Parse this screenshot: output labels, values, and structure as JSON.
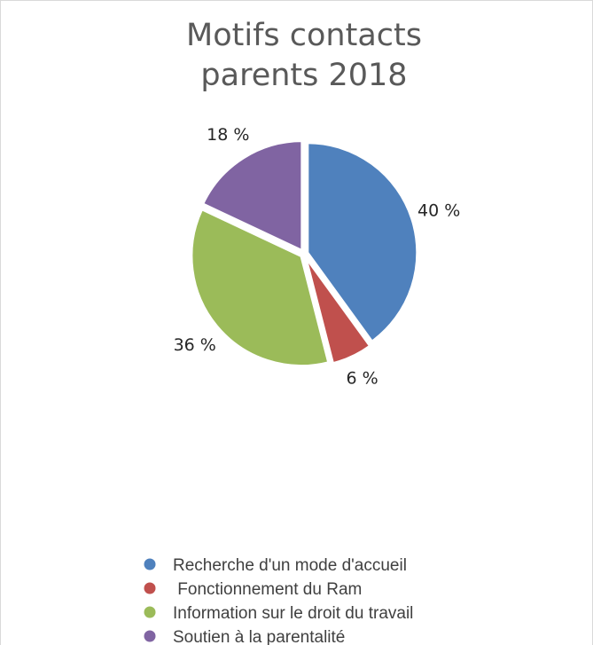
{
  "chart_data": {
    "type": "pie",
    "title": [
      "Motifs contacts",
      "parents 2018"
    ],
    "categories": [
      "Recherche d'un mode d'accueil",
      " Fonctionnement du Ram",
      "Information sur le droit du travail",
      "Soutien à la parentalité"
    ],
    "values": [
      40,
      6,
      36,
      18
    ],
    "labels": [
      "40 %",
      "6 %",
      "36 %",
      "18 %"
    ],
    "colors": [
      "#4f81bd",
      "#c0504d",
      "#9bbb59",
      "#8064a2"
    ],
    "legend_position": "bottom",
    "exploded": true
  }
}
